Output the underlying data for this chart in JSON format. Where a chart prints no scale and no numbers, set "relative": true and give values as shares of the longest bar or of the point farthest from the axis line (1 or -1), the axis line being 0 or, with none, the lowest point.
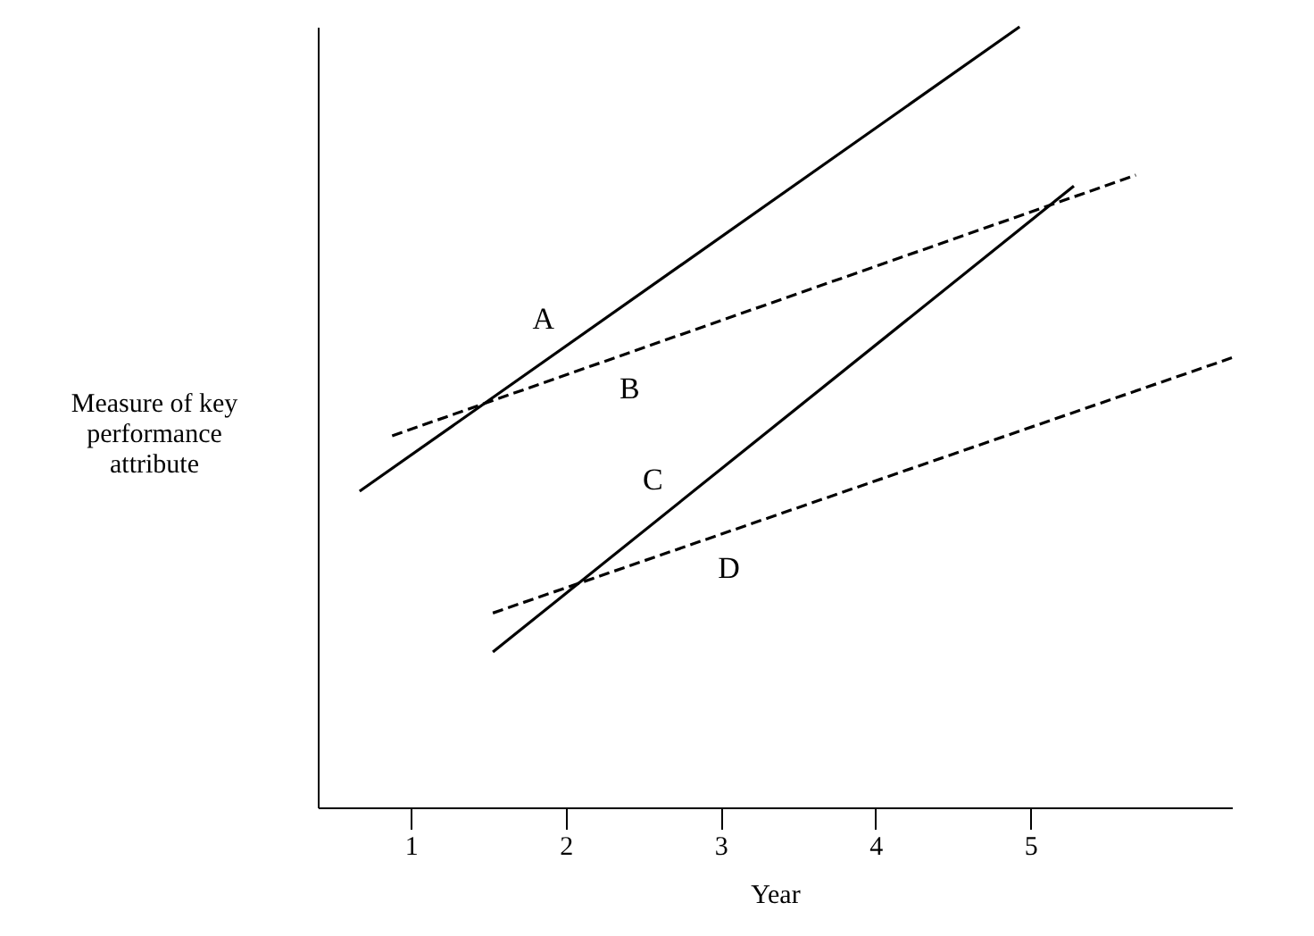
{
  "chart_data": {
    "type": "line",
    "relative": true,
    "xlabel": "Year",
    "ylabel": "Measure of key performance attribute",
    "xlim": [
      0.4,
      6.3
    ],
    "xticks": [
      1,
      2,
      3,
      4,
      5
    ],
    "marker": "none",
    "series": [
      {
        "name": "A",
        "color": "#000000",
        "line_style": "solid",
        "x": [
          0.67,
          4.93
        ],
        "values": [
          0.405,
          1.0
        ]
      },
      {
        "name": "B",
        "color": "#000000",
        "line_style": "dashed",
        "x": [
          0.88,
          5.68
        ],
        "values": [
          0.476,
          0.81
        ]
      },
      {
        "name": "C",
        "color": "#000000",
        "line_style": "solid",
        "x": [
          1.53,
          5.28
        ],
        "values": [
          0.199,
          0.796
        ]
      },
      {
        "name": "D",
        "color": "#000000",
        "line_style": "dashed",
        "x": [
          1.53,
          6.3
        ],
        "values": [
          0.249,
          0.576
        ]
      }
    ]
  }
}
